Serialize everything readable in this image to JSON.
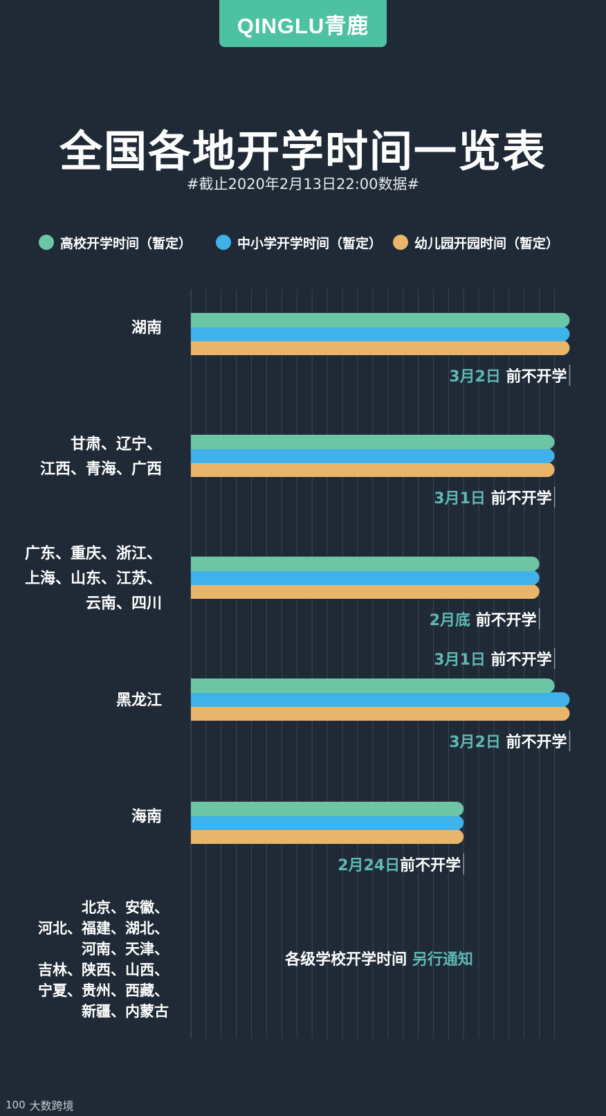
{
  "logo": {
    "text": "QINGLU青鹿"
  },
  "title": "全国各地开学时间一览表",
  "subtitle": "#截止2020年2月13日22:00数据#",
  "colors": {
    "background": "#1f2a36",
    "university": "#6cc6a6",
    "primary_secondary": "#3fb2ea",
    "kindergarten": "#e9b56b",
    "date_highlight": "#5fb8b4",
    "grid": "#3a4654"
  },
  "watermark": {
    "mark": "100",
    "text": "大数跨境"
  },
  "chart_data": {
    "type": "bar",
    "orientation": "horizontal",
    "series": [
      {
        "name": "高校开学时间（暂定）"
      },
      {
        "name": "中小学开学时间（暂定）"
      },
      {
        "name": "幼儿园开园时间（暂定）"
      }
    ],
    "legend_position": "top",
    "grid": true,
    "groups": [
      {
        "label_lines": [
          "湖南"
        ],
        "values": [
          2,
          2,
          2
        ],
        "annotations": [
          {
            "date": "3月2日",
            "suffix": " 前不开学",
            "position": "below"
          }
        ]
      },
      {
        "label_lines": [
          "甘肃、辽宁、",
          "江西、青海、广西"
        ],
        "values": [
          1,
          1,
          1
        ],
        "annotations": [
          {
            "date": "3月1日",
            "suffix": " 前不开学",
            "position": "below"
          }
        ]
      },
      {
        "label_lines": [
          "广东、重庆、浙江、",
          "上海、山东、江苏、",
          "云南、四川"
        ],
        "values": [
          0,
          0,
          0
        ],
        "annotations": [
          {
            "date": "2月底",
            "suffix": " 前不开学",
            "position": "below"
          }
        ]
      },
      {
        "label_lines": [
          "黑龙江"
        ],
        "values": [
          1,
          2,
          2
        ],
        "annotations": [
          {
            "date": "3月1日",
            "suffix": " 前不开学",
            "position": "above"
          },
          {
            "date": "3月2日",
            "suffix": " 前不开学",
            "position": "below"
          }
        ]
      },
      {
        "label_lines": [
          "海南"
        ],
        "values": [
          -5,
          -5,
          -5
        ],
        "annotations": [
          {
            "date": "2月24日",
            "suffix": "前不开学",
            "position": "below"
          }
        ]
      },
      {
        "label_lines": [
          "北京、安徽、",
          "河北、福建、湖北、",
          "河南、天津、",
          "吉林、陕西、山西、",
          "宁夏、贵州、西藏、",
          "新疆、内蒙古"
        ],
        "values": [],
        "note": {
          "text": "各级学校开学时间 ",
          "highlight": "另行通知"
        }
      }
    ]
  }
}
